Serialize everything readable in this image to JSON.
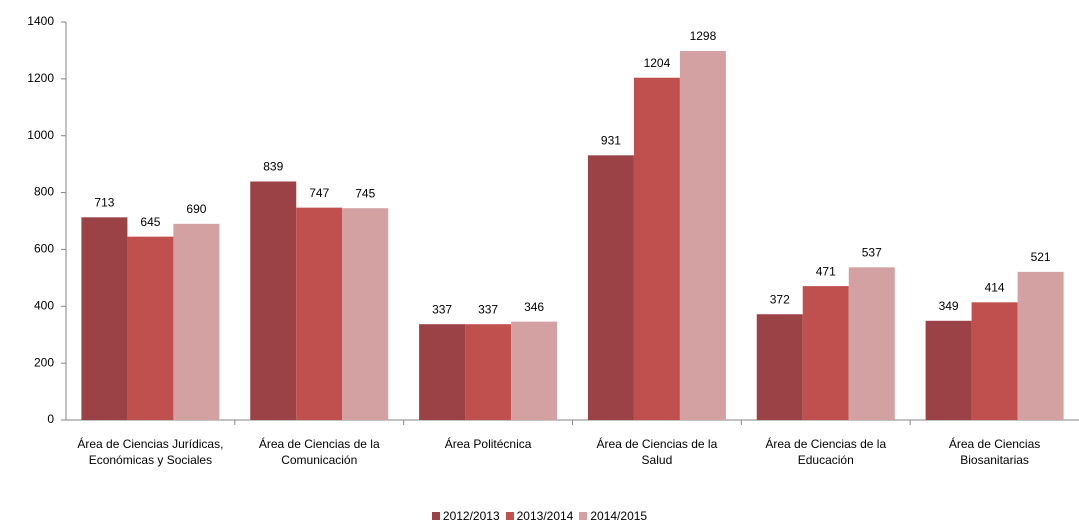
{
  "chart_data": {
    "type": "bar",
    "categories": [
      "Área de Ciencias Jurídicas, Económicas y Sociales",
      "Área de Ciencias de la Comunicación",
      "Área Politécnica",
      "Área de Ciencias de la Salud",
      "Área de Ciencias de la Educación",
      "Área de Ciencias Biosanitarias"
    ],
    "series": [
      {
        "name": "2012/2013",
        "color": "#9b4246",
        "values": [
          713,
          839,
          337,
          931,
          372,
          349
        ]
      },
      {
        "name": "2013/2014",
        "color": "#c0504d",
        "values": [
          645,
          747,
          337,
          1204,
          471,
          414
        ]
      },
      {
        "name": "2014/2015",
        "color": "#d4a1a2",
        "values": [
          690,
          745,
          346,
          1298,
          537,
          521
        ]
      }
    ],
    "ylim": [
      0,
      1400
    ],
    "yticks": [
      0,
      200,
      400,
      600,
      800,
      1000,
      1200,
      1400
    ],
    "grid": false,
    "legend": "bottom"
  }
}
